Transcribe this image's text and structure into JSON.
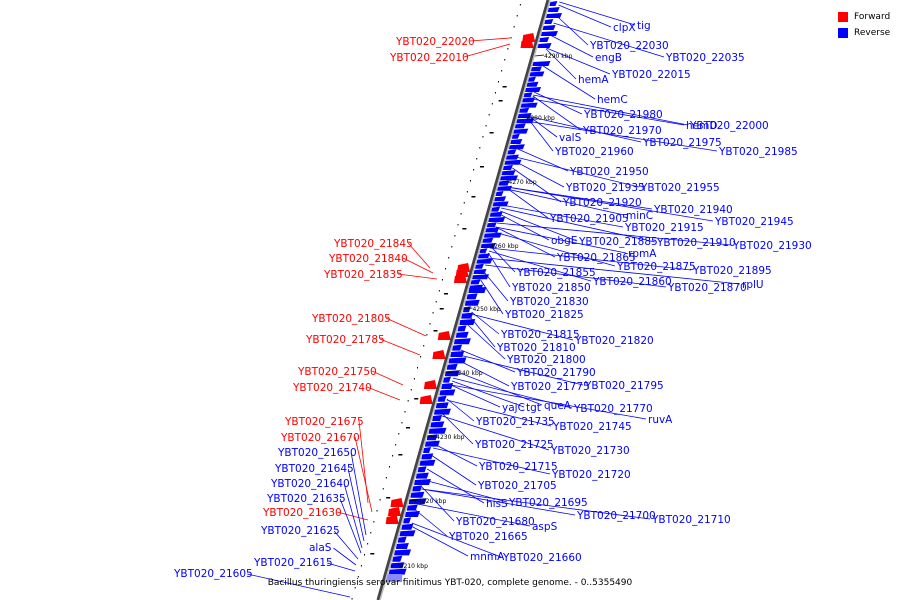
{
  "caption": "Bacillus thuringiensis serovar finitimus YBT-020, complete genome. - 0..5355490",
  "legend": {
    "forward_label": "Forward",
    "reverse_label": "Reverse",
    "forward_color": "#ff0000",
    "reverse_color": "#0000ff"
  },
  "ticks": [
    "4210 kbp",
    "4220 kbp",
    "4230 kbp",
    "4240 kbp",
    "4250 kbp",
    "4260 kbp",
    "4270 kbp",
    "4280 kbp",
    "4290 kbp"
  ],
  "forward_genes": [
    "YBT020_22020",
    "YBT020_22010",
    "YBT020_21845",
    "YBT020_21840",
    "YBT020_21835",
    "YBT020_21805",
    "YBT020_21785",
    "YBT020_21750",
    "YBT020_21740",
    "YBT020_21675",
    "YBT020_21670",
    "YBT020_21630"
  ],
  "reverse_left_genes": [
    "YBT020_21650",
    "YBT020_21645",
    "YBT020_21640",
    "YBT020_21635",
    "YBT020_21625",
    "alaS",
    "YBT020_21615",
    "YBT020_21605"
  ],
  "reverse_right_genes": [
    "clpX",
    "tig",
    "YBT020_22030",
    "YBT020_22035",
    "engB",
    "YBT020_22015",
    "hemA",
    "hemC",
    "YBT020_21980",
    "hemD",
    "YBT020_22000",
    "YBT020_21970",
    "valS",
    "YBT020_21975",
    "YBT020_21985",
    "YBT020_21960",
    "YBT020_21950",
    "YBT020_21935",
    "YBT020_21955",
    "YBT020_21920",
    "YBT020_21940",
    "minC",
    "YBT020_21905",
    "YBT020_21945",
    "YBT020_21915",
    "obgE",
    "YBT020_21885",
    "YBT020_21910",
    "YBT020_21930",
    "rpmA",
    "YBT020_21865",
    "YBT020_21875",
    "YBT020_21895",
    "YBT020_21855",
    "YBT020_21860",
    "YBT020_21850",
    "YBT020_21870",
    "rplU",
    "YBT020_21830",
    "YBT020_21825",
    "YBT020_21815",
    "YBT020_21820",
    "YBT020_21810",
    "YBT020_21800",
    "YBT020_21790",
    "YBT020_21775",
    "YBT020_21795",
    "queA",
    "yajC",
    "tgt",
    "YBT020_21770",
    "ruvA",
    "YBT020_21735",
    "YBT020_21745",
    "YBT020_21725",
    "YBT020_21730",
    "YBT020_21715",
    "YBT020_21720",
    "YBT020_21705",
    "hisS",
    "YBT020_21695",
    "YBT020_21700",
    "YBT020_21710",
    "YBT020_21680",
    "aspS",
    "YBT020_21665",
    "mnmA",
    "YBT020_21660"
  ]
}
